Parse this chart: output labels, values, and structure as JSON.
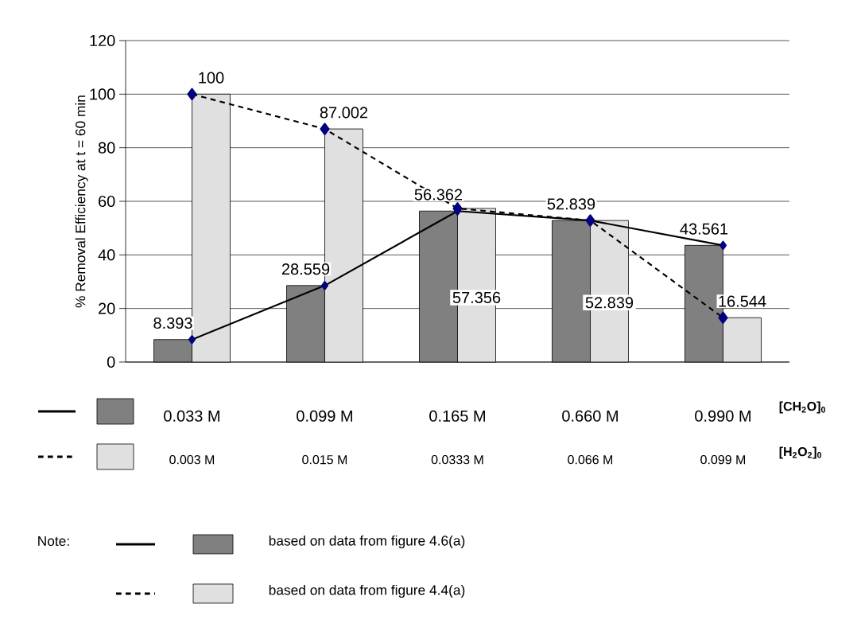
{
  "chart_data": {
    "type": "bar",
    "ylabel": "% Removal Efficiency at t = 60 min",
    "categories": [
      "0.033 M",
      "0.099 M",
      "0.165 M",
      "0.660 M",
      "0.990 M"
    ],
    "series": [
      {
        "name": "[CH$_{2}$O]$_{0}$",
        "color": "#808080",
        "values": [
          8.393,
          28.559,
          56.362,
          52.839,
          43.561
        ],
        "value_labels": [
          "8.393",
          "28.559",
          "56.362",
          "52.839",
          "43.561"
        ]
      },
      {
        "name": "[H$_{2}$O$_{2}$]$_{0}$",
        "color": "#e0e0e0",
        "values": [
          100,
          87.002,
          57.356,
          52.839,
          16.544
        ],
        "value_labels": [
          "100",
          "87.002",
          "57.356",
          "52.839",
          "16.544"
        ]
      },
      {
        "type": "line",
        "color": "#000000",
        "line_style": "solid",
        "marker": "diamond",
        "values": [
          8.393,
          28.559,
          56.362,
          52.839,
          43.561
        ]
      },
      {
        "type": "line",
        "color": "#000000",
        "line_style": "dashed",
        "marker": "diamond",
        "values": [
          100,
          87.002,
          57.356,
          52.839,
          16.544
        ]
      }
    ],
    "ylim": [
      0,
      120
    ],
    "yticks": [
      0,
      20,
      40,
      60,
      80,
      100,
      120
    ],
    "grid": "y",
    "legend": "bottom",
    "annotations": [
      "0.003 M",
      "0.015 M",
      "0.0333 M",
      "0.066 M",
      "0.099 M",
      "Note:",
      "based on data from figure 4.6(a)",
      "based on data from figure 4.4(a)"
    ]
  }
}
